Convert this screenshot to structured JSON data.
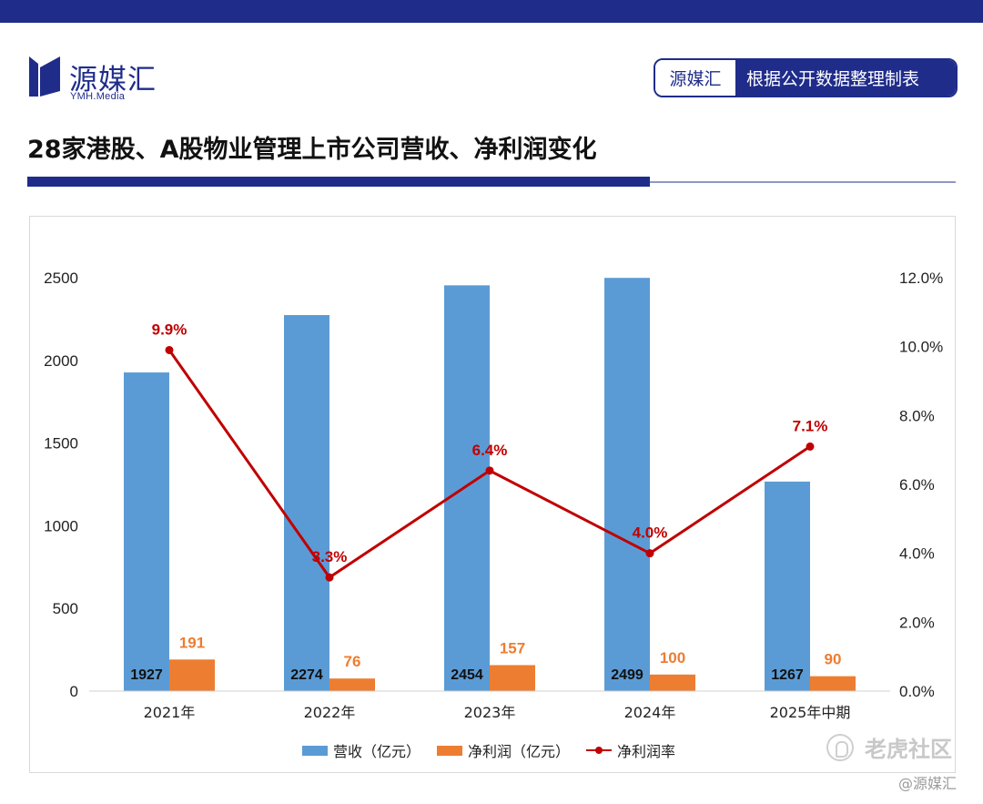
{
  "header": {
    "logo_text": "源媒汇",
    "logo_sub": "YMH.Media",
    "source_brand": "源媒汇",
    "source_desc": "根据公开数据整理制表",
    "title": "28家港股、A股物业管理上市公司营收、净利润变化"
  },
  "colors": {
    "brand": "#1f2c8a",
    "revenue": "#5b9bd5",
    "profit": "#ed7d31",
    "margin": "#c00000"
  },
  "chart_data": {
    "type": "bar",
    "categories": [
      "2021年",
      "2022年",
      "2023年",
      "2024年",
      "2025年中期"
    ],
    "series": [
      {
        "name": "营收（亿元）",
        "type": "bar",
        "axis": "left",
        "values": [
          1927,
          2274,
          2454,
          2499,
          1267
        ],
        "labels": [
          "1927",
          "2274",
          "2454",
          "2499",
          "1267"
        ]
      },
      {
        "name": "净利润（亿元）",
        "type": "bar",
        "axis": "left",
        "values": [
          191,
          76,
          157,
          100,
          90
        ],
        "labels": [
          "191",
          "76",
          "157",
          "100",
          "90"
        ]
      },
      {
        "name": "净利润率",
        "type": "line",
        "axis": "right",
        "values": [
          9.9,
          3.3,
          6.4,
          4.0,
          7.1
        ],
        "labels": [
          "9.9%",
          "3.3%",
          "6.4%",
          "4.0%",
          "7.1%"
        ]
      }
    ],
    "y_left": {
      "min": 0,
      "max": 2500,
      "ticks": [
        "0",
        "500",
        "1000",
        "1500",
        "2000",
        "2500"
      ]
    },
    "y_right": {
      "min": 0,
      "max": 12,
      "ticks": [
        "0.0%",
        "2.0%",
        "4.0%",
        "6.0%",
        "8.0%",
        "10.0%",
        "12.0%"
      ]
    },
    "legend_position": "bottom",
    "grid": false
  },
  "watermark": {
    "main": "老虎社区",
    "sub": "@源媒汇"
  }
}
